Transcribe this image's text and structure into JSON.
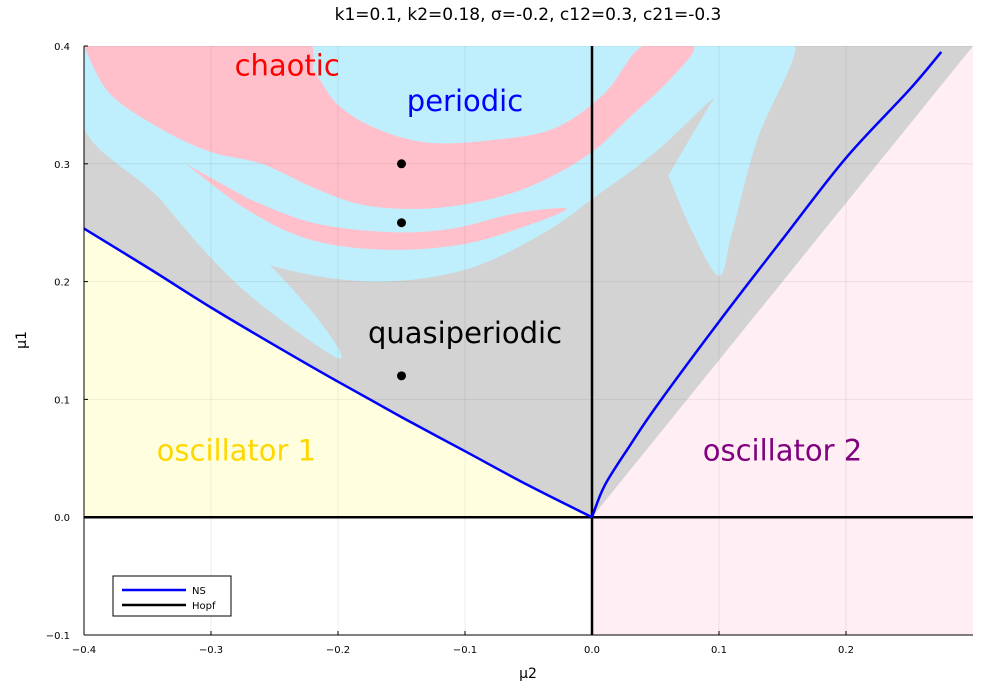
{
  "chart_data": {
    "type": "scatter",
    "title": "k1=0.1, k2=0.18, σ=-0.2, c12=0.3, c21=-0.3",
    "xlabel": "μ2",
    "ylabel": "μ1",
    "xlim": [
      -0.4,
      0.3
    ],
    "ylim": [
      -0.1,
      0.4
    ],
    "xticks": [
      -0.4,
      -0.3,
      -0.2,
      -0.1,
      0.0,
      0.1,
      0.2
    ],
    "xtick_labels": [
      "−0.4",
      "−0.3",
      "−0.2",
      "−0.1",
      "0.0",
      "0.1",
      "0.2"
    ],
    "yticks": [
      -0.1,
      0.0,
      0.1,
      0.2,
      0.3,
      0.4
    ],
    "ytick_labels": [
      "−0.1",
      "0.0",
      "0.1",
      "0.2",
      "0.3",
      "0.4"
    ],
    "grid": true,
    "legend_position": "bottom-left",
    "regions": [
      {
        "label": "chaotic",
        "color": "#ff0000",
        "x": -0.24,
        "y": 0.375
      },
      {
        "label": "periodic",
        "color": "#0000ff",
        "x": -0.1,
        "y": 0.345
      },
      {
        "label": "quasiperiodic",
        "color": "#000000",
        "x": -0.1,
        "y": 0.148
      },
      {
        "label": "oscillator 1",
        "color": "#ffd700",
        "x": -0.28,
        "y": 0.048
      },
      {
        "label": "oscillator 2",
        "color": "#800080",
        "x": 0.15,
        "y": 0.048
      }
    ],
    "region_fills": {
      "oscillator1": "#ffffe0",
      "oscillator2": "#ffeef3",
      "quasiperiodic": "#d3d3d3",
      "periodic": "#bfeefc",
      "chaotic": "#ffc0cb"
    },
    "points": [
      {
        "x": -0.15,
        "y": 0.3
      },
      {
        "x": -0.15,
        "y": 0.25
      },
      {
        "x": -0.15,
        "y": 0.12
      }
    ],
    "series": [
      {
        "name": "NS",
        "color": "#0000ff",
        "points": [
          [
            -0.4,
            0.245
          ],
          [
            -0.35,
            0.212
          ],
          [
            -0.3,
            0.178
          ],
          [
            -0.25,
            0.146
          ],
          [
            -0.2,
            0.115
          ],
          [
            -0.15,
            0.085
          ],
          [
            -0.1,
            0.056
          ],
          [
            -0.05,
            0.027
          ],
          [
            0.0,
            0.0
          ],
          [
            0.01,
            0.027
          ],
          [
            0.03,
            0.061
          ],
          [
            0.05,
            0.093
          ],
          [
            0.1,
            0.166
          ],
          [
            0.15,
            0.236
          ],
          [
            0.2,
            0.305
          ],
          [
            0.25,
            0.363
          ],
          [
            0.275,
            0.395
          ]
        ]
      },
      {
        "name": "Hopf",
        "color": "#000000",
        "segments": [
          [
            [
              -0.4,
              0.0
            ],
            [
              0.3,
              0.0
            ]
          ],
          [
            [
              0.0,
              -0.1
            ],
            [
              0.0,
              0.4
            ]
          ]
        ]
      }
    ]
  }
}
